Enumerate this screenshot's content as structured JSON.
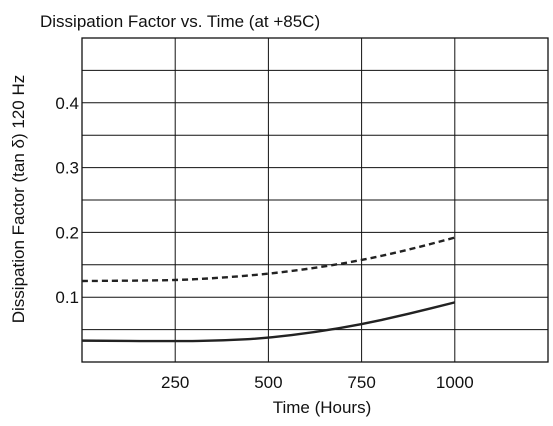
{
  "chart_data": {
    "type": "line",
    "title": "Dissipation Factor vs. Time (at +85C)",
    "xlabel": "Time (Hours)",
    "ylabel": "Dissipation Factor (tan δ) 120 Hz",
    "xlim": [
      0,
      1250
    ],
    "ylim": [
      0,
      0.5
    ],
    "xticks": [
      250,
      500,
      750,
      1000
    ],
    "xtick_labels": [
      "250",
      "500",
      "750",
      "1000"
    ],
    "yticks": [
      0.1,
      0.2,
      0.3,
      0.4
    ],
    "ytick_labels": [
      "0.1",
      "0.2",
      "0.3",
      "0.4"
    ],
    "x_gridlines": [
      250,
      500,
      750,
      1000
    ],
    "y_gridlines": [
      0.05,
      0.1,
      0.15,
      0.2,
      0.25,
      0.3,
      0.35,
      0.4,
      0.45
    ],
    "grid": true,
    "legend": "none",
    "series": [
      {
        "style": "dashed",
        "color": "#222222",
        "x": [
          0,
          250,
          375,
          500,
          625,
          750,
          875,
          1000
        ],
        "y": [
          0.125,
          0.126,
          0.13,
          0.136,
          0.145,
          0.157,
          0.173,
          0.192
        ]
      },
      {
        "style": "solid",
        "color": "#222222",
        "x": [
          0,
          250,
          375,
          500,
          625,
          750,
          875,
          1000
        ],
        "y": [
          0.033,
          0.032,
          0.033,
          0.037,
          0.046,
          0.058,
          0.074,
          0.092
        ]
      }
    ]
  }
}
